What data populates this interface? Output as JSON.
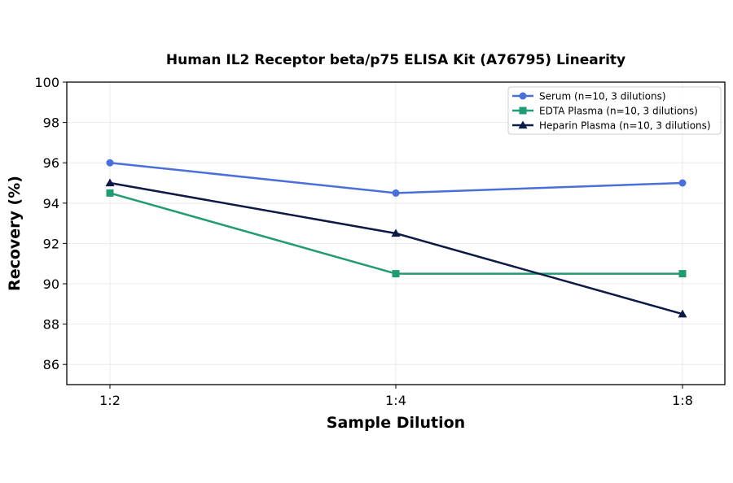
{
  "chart_data": {
    "type": "line",
    "title": "Human IL2 Receptor beta/p75 ELISA Kit (A76795) Linearity",
    "xlabel": "Sample Dilution",
    "ylabel": "Recovery (%)",
    "categories": [
      "1:2",
      "1:4",
      "1:8"
    ],
    "ylim": [
      85,
      100
    ],
    "yticks": [
      86,
      88,
      90,
      92,
      94,
      96,
      98,
      100
    ],
    "grid": true,
    "legend_position": "top-right",
    "series": [
      {
        "name": "Serum (n=10, 3 dilutions)",
        "values": [
          96,
          94.5,
          95
        ],
        "color": "#4a6fd8",
        "marker": "circle"
      },
      {
        "name": "EDTA Plasma (n=10, 3 dilutions)",
        "values": [
          94.5,
          90.5,
          90.5
        ],
        "color": "#229a73",
        "marker": "square"
      },
      {
        "name": "Heparin Plasma (n=10, 3 dilutions)",
        "values": [
          95,
          92.5,
          88.5
        ],
        "color": "#0d1a45",
        "marker": "triangle"
      }
    ]
  }
}
